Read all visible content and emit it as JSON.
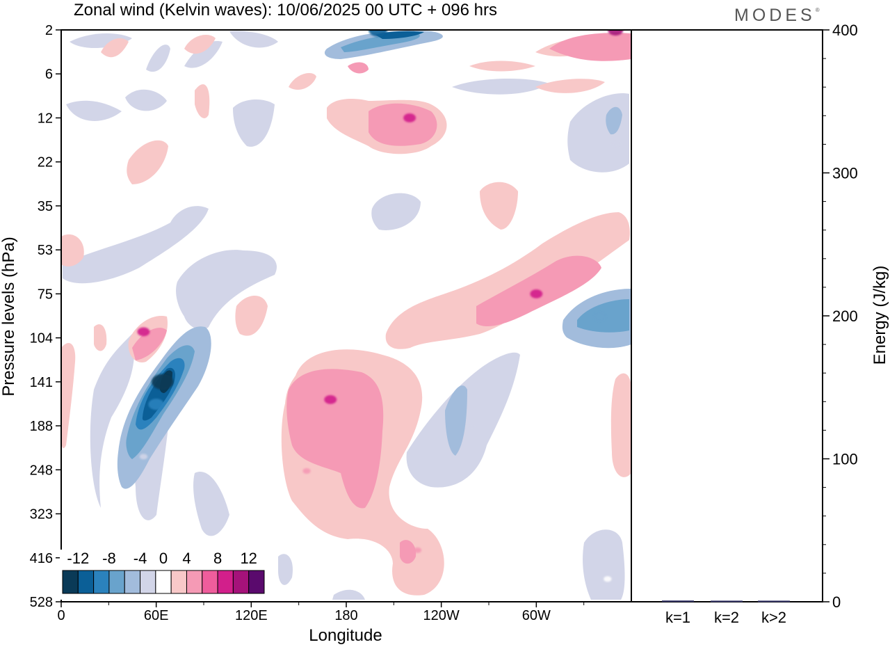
{
  "brand": "MODES",
  "chart_data": [
    {
      "type": "heatmap",
      "title": "Zonal wind (Kelvin waves):  10/06/2025  00 UTC  + 096 hrs",
      "xlabel": "Longitude",
      "ylabel": "Pressure levels (hPa)",
      "x_ticks": [
        "0",
        "60E",
        "120E",
        "180",
        "120W",
        "60W"
      ],
      "x_tick_values": [
        0,
        60,
        120,
        180,
        240,
        300
      ],
      "xlim": [
        0,
        360
      ],
      "y_ticks": [
        "2",
        "6",
        "12",
        "22",
        "35",
        "53",
        "75",
        "104",
        "141",
        "188",
        "248",
        "323",
        "416",
        "528"
      ],
      "y_scale": "levels",
      "grid": false,
      "colorbar": {
        "labels": [
          "-12",
          "-8",
          "-4",
          "0",
          "4",
          "8",
          "12"
        ],
        "levels": [
          -14,
          -12,
          -10,
          -8,
          -6,
          -4,
          -2,
          2,
          4,
          6,
          8,
          10,
          12,
          14
        ],
        "colors": [
          "#0a3a57",
          "#0b5f97",
          "#2b82bd",
          "#69a3cc",
          "#a2bcdc",
          "#d2d5e8",
          "#ffffff",
          "#f8c8c8",
          "#f59ab5",
          "#ef5d9c",
          "#d21f8b",
          "#a5127a",
          "#5a0a6d"
        ],
        "placement": "bottom-left"
      },
      "features": [
        {
          "sign": "neg",
          "lon": 64,
          "level": 141,
          "value": -14
        },
        {
          "sign": "neg",
          "lon": 60,
          "level": 165,
          "value": -10
        },
        {
          "sign": "neg",
          "lon": 52,
          "level": 230,
          "value": -4
        },
        {
          "sign": "neg",
          "lon": 200,
          "level": 2,
          "value": -12
        },
        {
          "sign": "neg",
          "lon": 340,
          "level": 90,
          "value": -8
        },
        {
          "sign": "neg",
          "lon": 258,
          "level": 190,
          "value": -4
        },
        {
          "sign": "neg",
          "lon": 350,
          "level": 18,
          "value": -4
        },
        {
          "sign": "neg",
          "lon": 345,
          "level": 470,
          "value": -2
        },
        {
          "sign": "pos",
          "lon": 170,
          "level": 160,
          "value": 8
        },
        {
          "sign": "pos",
          "lon": 155,
          "level": 250,
          "value": 4
        },
        {
          "sign": "pos",
          "lon": 220,
          "level": 12,
          "value": 8
        },
        {
          "sign": "pos",
          "lon": 300,
          "level": 75,
          "value": 8
        },
        {
          "sign": "pos",
          "lon": 52,
          "level": 100,
          "value": 8
        },
        {
          "sign": "pos",
          "lon": 350,
          "level": 2,
          "value": 10
        },
        {
          "sign": "pos",
          "lon": 225,
          "level": 400,
          "value": 4
        }
      ]
    },
    {
      "type": "bar",
      "categories": [
        "k=1",
        "k=2",
        "k>2"
      ],
      "values": [
        0.4,
        0.3,
        0.3
      ],
      "ylabel": "Energy (J/kg)",
      "ylim": [
        0,
        400
      ],
      "y_ticks": [
        0,
        100,
        200,
        300,
        400
      ],
      "grid": false
    }
  ]
}
